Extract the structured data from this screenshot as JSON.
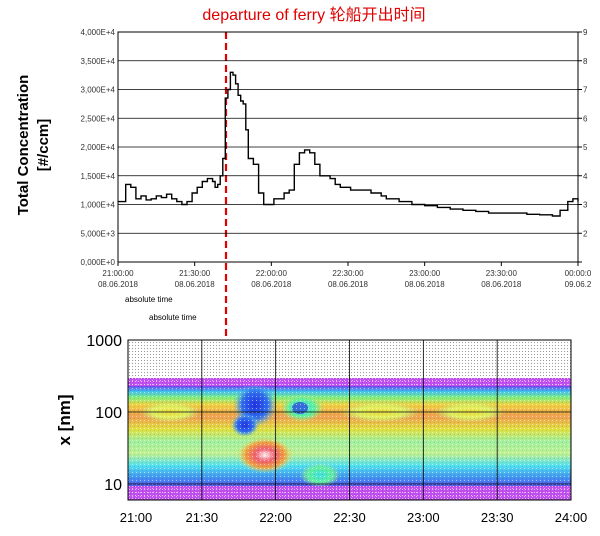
{
  "annotation": {
    "text": "departure of ferry 轮船开出时间",
    "color": "#e00000",
    "time": "21:38"
  },
  "chart_data": [
    {
      "type": "line",
      "ylabel_line1": "Total Concentration",
      "ylabel_line2": "[#/ccm]",
      "xlabel_main": "absolute time",
      "xlabel_secondary": "absolute time",
      "y_ticks": [
        "0,000E+0",
        "5,000E+3",
        "1,000E+4",
        "1,500E+4",
        "2,000E+4",
        "2,500E+4",
        "3,000E+4",
        "3,500E+4",
        "4,000E+4"
      ],
      "x_tick_times": [
        "21:00:00",
        "21:30:00",
        "22:00:00",
        "22:30:00",
        "23:00:00",
        "23:30:00",
        "00:00:0"
      ],
      "x_tick_dates": [
        "08.06.2018",
        "08.06.2018",
        "08.06.2018",
        "08.06.2018",
        "08.06.2018",
        "08.06.2018",
        "09.06.2"
      ],
      "ylim": [
        0,
        40000
      ],
      "x_minutes_from": "21:00",
      "series": [
        {
          "x": [
            "21:00",
            "21:03",
            "21:05",
            "21:07",
            "21:09",
            "21:11",
            "21:13",
            "21:15",
            "21:17",
            "21:19",
            "21:21",
            "21:23",
            "21:25",
            "21:27",
            "21:29",
            "21:31",
            "21:33",
            "21:35",
            "21:37",
            "21:38",
            "21:39",
            "21:40",
            "21:41",
            "21:42",
            "21:43",
            "21:44",
            "21:45",
            "21:46",
            "21:47",
            "21:48",
            "21:49",
            "21:50",
            "21:51",
            "21:52",
            "21:53",
            "21:55",
            "21:57",
            "21:59",
            "22:01",
            "22:03",
            "22:05",
            "22:07",
            "22:09",
            "22:11",
            "22:13",
            "22:15",
            "22:17",
            "22:19",
            "22:21",
            "22:23",
            "22:25",
            "22:27",
            "22:29",
            "22:31",
            "22:33",
            "22:35",
            "22:37",
            "22:39",
            "22:41",
            "22:43",
            "22:45",
            "22:50",
            "22:55",
            "23:00",
            "23:05",
            "23:10",
            "23:15",
            "23:20",
            "23:25",
            "23:30",
            "23:35",
            "23:40",
            "23:45",
            "23:50",
            "23:53",
            "23:56",
            "23:58",
            "24:00"
          ],
          "y": [
            10500,
            13500,
            13000,
            11000,
            11500,
            10800,
            11000,
            11500,
            11200,
            11800,
            11000,
            10500,
            10000,
            10500,
            12000,
            13000,
            14000,
            14500,
            14000,
            13000,
            13500,
            15000,
            18000,
            28500,
            30000,
            33000,
            32500,
            31000,
            29000,
            28000,
            27500,
            23000,
            18000,
            18000,
            17000,
            12000,
            10000,
            10000,
            11000,
            11000,
            12000,
            12500,
            17000,
            19000,
            19500,
            19000,
            17000,
            15000,
            15000,
            14500,
            13500,
            13000,
            13000,
            12500,
            12500,
            12500,
            12500,
            12000,
            12000,
            11500,
            11000,
            10500,
            10000,
            9800,
            9500,
            9200,
            9000,
            8800,
            8500,
            8500,
            8500,
            8300,
            8200,
            8000,
            9000,
            10500,
            11000,
            10500
          ]
        }
      ]
    },
    {
      "type": "heatmap",
      "ylabel": "x [nm]",
      "y_ticks": [
        "1000",
        "100",
        "10"
      ],
      "x_ticks": [
        "21:00",
        "21:30",
        "22:00",
        "22:30",
        "23:00",
        "23:30",
        "24:00"
      ],
      "y_scale": "log",
      "ylim": [
        6,
        1000
      ]
    }
  ]
}
